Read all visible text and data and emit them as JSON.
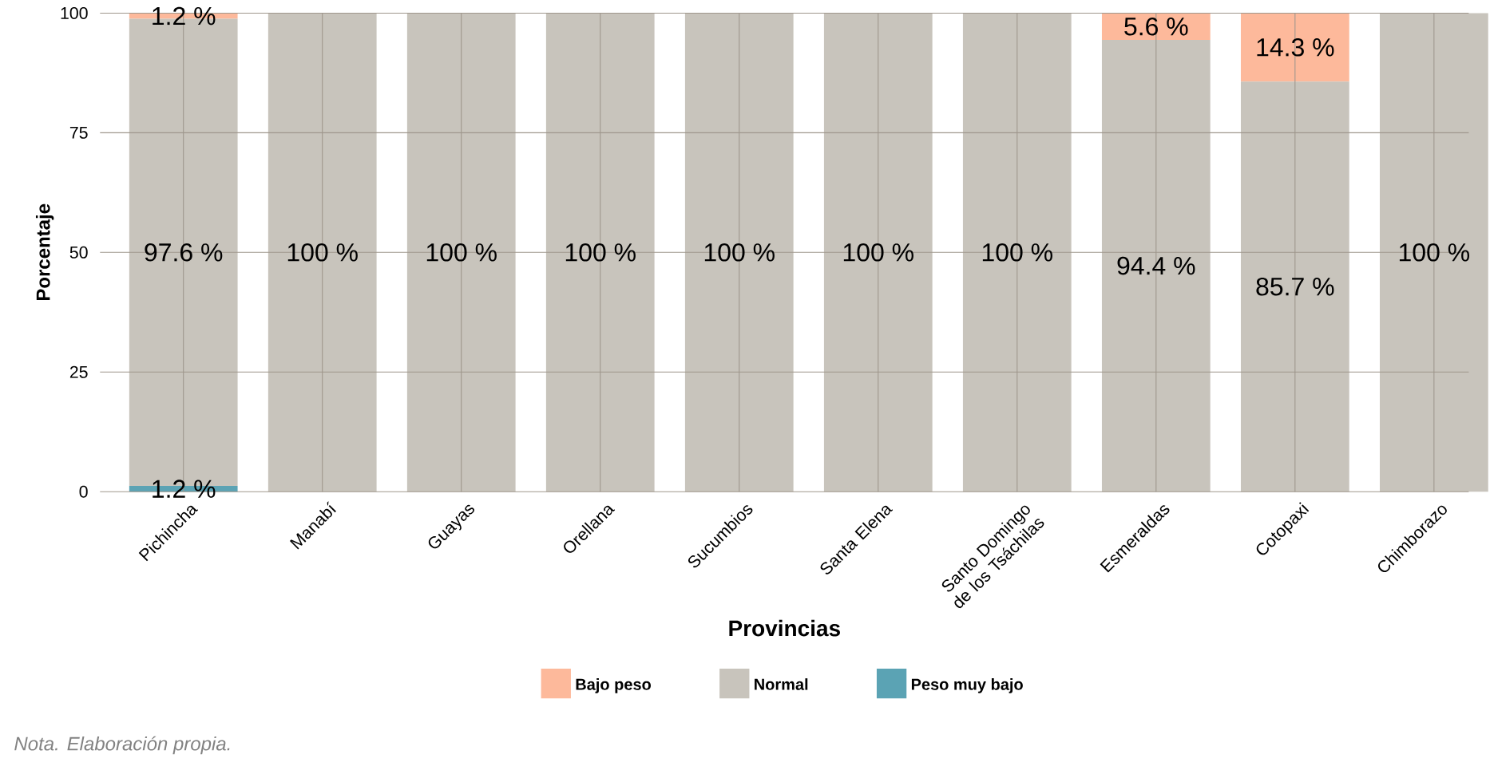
{
  "chart_data": {
    "type": "bar",
    "stacked": true,
    "xlabel": "Provincias",
    "ylabel": "Porcentaje",
    "categories": [
      "Pichincha",
      "Manabí",
      "Guayas",
      "Orellana",
      "Sucumbios",
      "Santa Elena",
      "Santo Domingo de los Tsáchilas",
      "Esmeraldas",
      "Cotopaxi",
      "Chimborazo"
    ],
    "series": [
      {
        "name": "Peso muy bajo",
        "color": "#5ba3b4",
        "values": [
          1.2,
          0,
          0,
          0,
          0,
          0,
          0,
          0,
          0,
          0
        ],
        "value_labels": [
          "1.2 %",
          null,
          null,
          null,
          null,
          null,
          null,
          null,
          null,
          null
        ]
      },
      {
        "name": "Normal",
        "color": "#c8c4bc",
        "values": [
          97.6,
          100,
          100,
          100,
          100,
          100,
          100,
          94.4,
          85.7,
          100
        ],
        "value_labels": [
          "97.6 %",
          "100 %",
          "100 %",
          "100 %",
          "100 %",
          "100 %",
          "100 %",
          "94.4 %",
          "85.7 %",
          "100 %"
        ]
      },
      {
        "name": "Bajo peso",
        "color": "#fdb99b",
        "values": [
          1.2,
          0,
          0,
          0,
          0,
          0,
          0,
          5.6,
          14.3,
          0
        ],
        "value_labels": [
          "1.2 %",
          null,
          null,
          null,
          null,
          null,
          null,
          "5.6 %",
          "14.3 %",
          null
        ]
      }
    ],
    "ylim": [
      0,
      100
    ],
    "yticks": [
      0,
      25,
      50,
      75,
      100
    ],
    "grid": true,
    "legend": "bottom",
    "annotations": [
      "Nota. Elaboración propia."
    ]
  }
}
